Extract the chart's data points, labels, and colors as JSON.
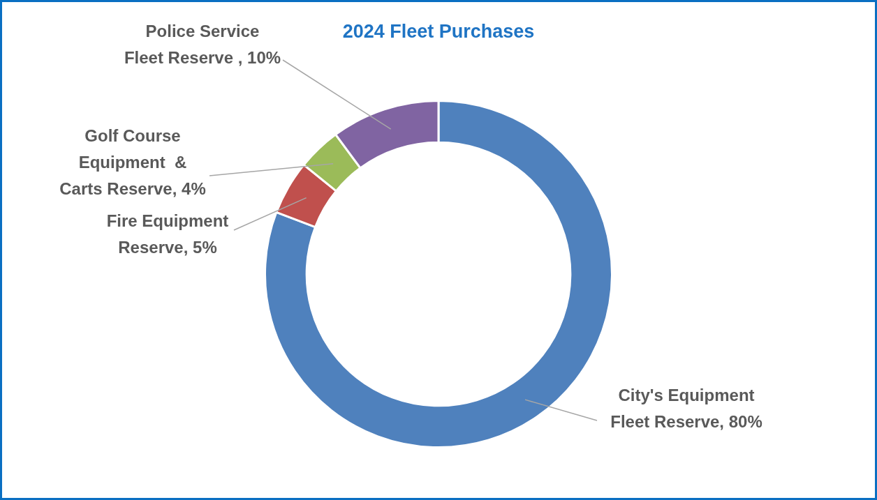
{
  "chart_data": {
    "type": "donut",
    "title": "2024 Fleet Purchases",
    "categories": [
      "City's Equipment Fleet Reserve",
      "Fire Equipment Reserve",
      "Golf Course Equipment  & Carts Reserve",
      "Police Service Fleet Reserve "
    ],
    "values": [
      80,
      5,
      4,
      10
    ],
    "value_labels": [
      "80%",
      "5%",
      "4%",
      "10%"
    ],
    "colors": [
      "#4f81bd",
      "#c0504d",
      "#9bbb59",
      "#8064a2"
    ],
    "legend": false
  }
}
